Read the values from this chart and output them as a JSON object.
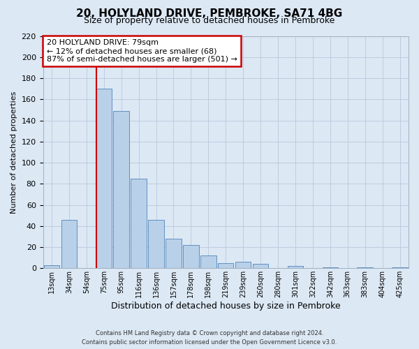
{
  "title": "20, HOLYLAND DRIVE, PEMBROKE, SA71 4BG",
  "subtitle": "Size of property relative to detached houses in Pembroke",
  "xlabel": "Distribution of detached houses by size in Pembroke",
  "ylabel": "Number of detached properties",
  "bar_labels": [
    "13sqm",
    "34sqm",
    "54sqm",
    "75sqm",
    "95sqm",
    "116sqm",
    "136sqm",
    "157sqm",
    "178sqm",
    "198sqm",
    "219sqm",
    "239sqm",
    "260sqm",
    "280sqm",
    "301sqm",
    "322sqm",
    "342sqm",
    "363sqm",
    "383sqm",
    "404sqm",
    "425sqm"
  ],
  "bar_values": [
    3,
    46,
    0,
    170,
    149,
    85,
    46,
    28,
    22,
    12,
    5,
    6,
    4,
    0,
    2,
    0,
    1,
    0,
    1,
    0,
    1
  ],
  "bar_color": "#b8d0e8",
  "bar_edge_color": "#6090c0",
  "ylim": [
    0,
    220
  ],
  "yticks": [
    0,
    20,
    40,
    60,
    80,
    100,
    120,
    140,
    160,
    180,
    200,
    220
  ],
  "vline_color": "#cc0000",
  "vline_index": 3,
  "annotation_title": "20 HOLYLAND DRIVE: 79sqm",
  "annotation_line1": "← 12% of detached houses are smaller (68)",
  "annotation_line2": "87% of semi-detached houses are larger (501) →",
  "annotation_box_color": "#cc0000",
  "footer_line1": "Contains HM Land Registry data © Crown copyright and database right 2024.",
  "footer_line2": "Contains public sector information licensed under the Open Government Licence v3.0.",
  "background_color": "#dce8f4",
  "title_fontsize": 11,
  "subtitle_fontsize": 9,
  "ylabel_fontsize": 8,
  "xlabel_fontsize": 9
}
